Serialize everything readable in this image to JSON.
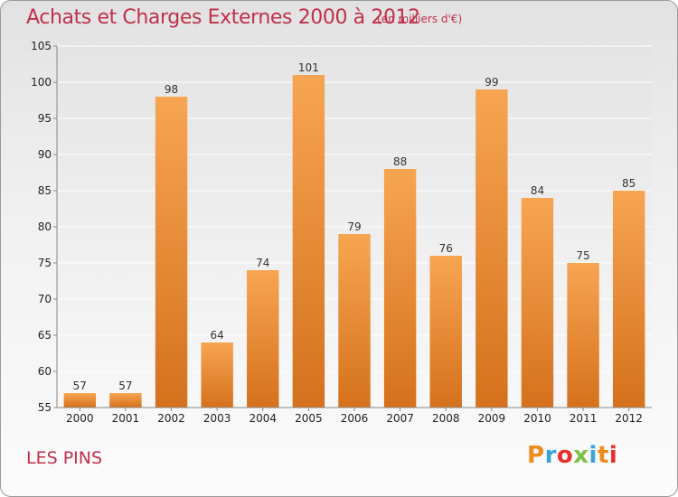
{
  "header": {
    "title": "Achats et Charges Externes 2000 à 2012",
    "unit": "(en milliers d'€)"
  },
  "footer": {
    "commune": "LES PINS",
    "logo": [
      "P",
      "r",
      "o",
      "x",
      "i",
      "t",
      "i"
    ]
  },
  "colors": {
    "title": "#c0304a",
    "bar_top": "#f7a552",
    "bar_bottom": "#d5711c",
    "logo": [
      "#f08a1c",
      "#3aa3d8",
      "#e8312a",
      "#7cc142",
      "#3aa3d8",
      "#f08a1c",
      "#e8312a"
    ]
  },
  "chart_data": {
    "type": "bar",
    "title": "Achats et Charges Externes 2000 à 2012",
    "categories": [
      "2000",
      "2001",
      "2002",
      "2003",
      "2004",
      "2005",
      "2006",
      "2007",
      "2008",
      "2009",
      "2010",
      "2011",
      "2012"
    ],
    "values": [
      57,
      57,
      98,
      64,
      74,
      101,
      79,
      88,
      76,
      99,
      84,
      75,
      85
    ],
    "data_labels": [
      "57",
      "57",
      "98",
      "64",
      "74",
      "101",
      "79",
      "88",
      "76",
      "99",
      "84",
      "75",
      "85"
    ],
    "ylim": [
      55,
      105
    ],
    "yticks": [
      55,
      60,
      65,
      70,
      75,
      80,
      85,
      90,
      95,
      100,
      105
    ],
    "ytick_labels": [
      "55",
      "60",
      "65",
      "70",
      "75",
      "80",
      "85",
      "90",
      "95",
      "100",
      "105"
    ],
    "grid": true
  }
}
